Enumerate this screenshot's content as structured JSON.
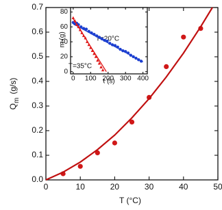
{
  "chart_data": [
    {
      "type": "scatter",
      "xlabel": "T (°C)",
      "ylabel": "Q",
      "ylabel_sub": "m",
      "ylabel_unit": "(g/s)",
      "xlim": [
        0,
        50
      ],
      "ylim": [
        0,
        0.7
      ],
      "xticks": [
        0,
        10,
        20,
        30,
        40,
        50
      ],
      "yticks": [
        {
          "value": 0,
          "label": "0.0"
        },
        0.1,
        0.2,
        0.3,
        0.4,
        0.5,
        0.6,
        0.7
      ],
      "series": [
        {
          "mode": "markers",
          "marker": "circle",
          "color": "#d01818",
          "x": [
            5,
            10,
            15,
            20,
            25,
            30,
            35,
            40,
            45
          ],
          "values": [
            0.025,
            0.055,
            0.11,
            0.15,
            0.235,
            0.335,
            0.46,
            0.58,
            0.615
          ]
        },
        {
          "mode": "line",
          "color": "#c01010",
          "x": [
            0,
            5,
            10,
            15,
            20,
            25,
            30,
            35,
            40,
            45,
            48.4
          ],
          "values": [
            0,
            0.0315,
            0.0724,
            0.123,
            0.182,
            0.252,
            0.33,
            0.418,
            0.515,
            0.622,
            0.7
          ]
        }
      ]
    },
    {
      "type": "scatter",
      "xlabel": "t (s)",
      "ylabel": "m (g)",
      "xlim": [
        -15,
        425
      ],
      "ylim": [
        -3,
        86
      ],
      "xticks": [
        0,
        100,
        200,
        300,
        400
      ],
      "yticks": [
        0,
        20,
        40,
        60,
        80
      ],
      "annotations": [
        "T=20°C",
        "T=35°C"
      ],
      "series": [
        {
          "mode": "markers",
          "marker": "circle",
          "color": "#1c3fd0",
          "x": [
            0,
            10,
            20,
            30,
            45,
            60,
            75,
            90,
            105,
            120,
            135,
            150,
            165,
            180,
            195,
            210,
            225,
            240,
            255,
            270,
            285,
            300,
            315,
            330,
            345,
            360,
            375,
            390
          ],
          "values": [
            66,
            64,
            65,
            63,
            60,
            58,
            57,
            54,
            52,
            50,
            48,
            46,
            44,
            42,
            41,
            38,
            36,
            35,
            33,
            30,
            28,
            27,
            25,
            22,
            20,
            18,
            16,
            14
          ]
        },
        {
          "mode": "line",
          "color": "#1c3fd0",
          "x": [
            0,
            400
          ],
          "values": [
            64,
            13
          ]
        },
        {
          "mode": "markers",
          "marker": "triangle",
          "color": "#e01818",
          "x": [
            0,
            10,
            20,
            30,
            40,
            50,
            60,
            70,
            80,
            90,
            100,
            110,
            120,
            130,
            140,
            150,
            160,
            170
          ],
          "values": [
            72,
            68,
            63,
            60,
            56,
            52,
            48,
            45,
            40,
            36,
            32,
            28,
            24,
            20,
            15,
            11,
            6,
            2
          ]
        },
        {
          "mode": "line",
          "color": "#e01818",
          "x": [
            0,
            190
          ],
          "values": [
            71,
            0
          ]
        }
      ]
    }
  ]
}
